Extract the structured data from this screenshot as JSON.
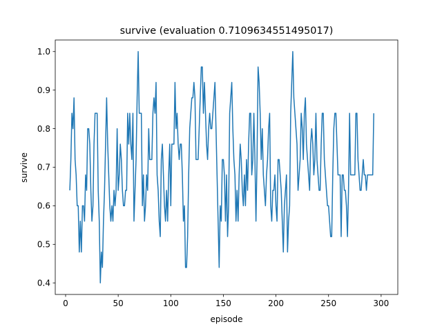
{
  "chart_data": {
    "type": "line",
    "title": "survive (evaluation 0.7109634551495017)",
    "xlabel": "episode",
    "ylabel": "survive",
    "xlim": [
      -9.85,
      315.85
    ],
    "ylim": [
      0.37,
      1.03
    ],
    "xticks": [
      0,
      50,
      100,
      150,
      200,
      250,
      300
    ],
    "yticks": [
      0.4,
      0.5,
      0.6,
      0.7,
      0.8,
      0.9,
      1.0
    ],
    "xtick_labels": [
      "0",
      "50",
      "100",
      "150",
      "200",
      "250",
      "300"
    ],
    "ytick_labels": [
      "0.4",
      "0.5",
      "0.6",
      "0.7",
      "0.8",
      "0.9",
      "1.0"
    ],
    "grid": false,
    "series": [
      {
        "color": "#1f77b4",
        "x_start": 4,
        "x_step": 1,
        "values": [
          0.64,
          0.72,
          0.84,
          0.8,
          0.88,
          0.72,
          0.68,
          0.6,
          0.6,
          0.48,
          0.56,
          0.48,
          0.6,
          0.6,
          0.56,
          0.68,
          0.64,
          0.8,
          0.8,
          0.76,
          0.64,
          0.56,
          0.6,
          0.76,
          0.84,
          0.84,
          0.84,
          0.64,
          0.56,
          0.4,
          0.48,
          0.44,
          0.56,
          0.64,
          0.76,
          0.88,
          0.76,
          0.68,
          0.6,
          0.56,
          0.6,
          0.56,
          0.64,
          0.6,
          0.64,
          0.8,
          0.64,
          0.68,
          0.76,
          0.72,
          0.64,
          0.6,
          0.6,
          0.64,
          0.64,
          0.84,
          0.76,
          0.84,
          0.76,
          0.72,
          0.84,
          0.56,
          0.64,
          0.72,
          0.88,
          1.0,
          0.84,
          0.84,
          0.84,
          0.6,
          0.68,
          0.56,
          0.6,
          0.68,
          0.64,
          0.8,
          0.72,
          0.72,
          0.72,
          0.84,
          0.88,
          0.84,
          0.92,
          0.68,
          0.64,
          0.56,
          0.52,
          0.72,
          0.76,
          0.68,
          0.6,
          0.56,
          0.64,
          0.56,
          0.68,
          0.76,
          0.6,
          0.76,
          0.76,
          0.76,
          0.92,
          0.8,
          0.84,
          0.76,
          0.72,
          0.76,
          0.76,
          0.68,
          0.56,
          0.6,
          0.44,
          0.44,
          0.52,
          0.68,
          0.8,
          0.84,
          0.88,
          0.88,
          0.92,
          0.88,
          0.72,
          0.72,
          0.72,
          0.8,
          0.88,
          0.96,
          0.96,
          0.84,
          0.92,
          0.84,
          0.76,
          0.72,
          0.8,
          0.84,
          0.8,
          0.8,
          0.84,
          0.88,
          0.92,
          0.8,
          0.68,
          0.56,
          0.44,
          0.6,
          0.56,
          0.72,
          0.72,
          0.68,
          0.56,
          0.68,
          0.52,
          0.6,
          0.84,
          0.88,
          0.92,
          0.8,
          0.72,
          0.68,
          0.56,
          0.64,
          0.56,
          0.68,
          0.76,
          0.72,
          0.64,
          0.6,
          0.68,
          0.6,
          0.72,
          0.64,
          0.76,
          0.84,
          0.84,
          0.68,
          0.72,
          0.84,
          0.72,
          0.56,
          0.72,
          0.96,
          0.92,
          0.84,
          0.72,
          0.8,
          0.68,
          0.64,
          0.6,
          0.68,
          0.72,
          0.8,
          0.84,
          0.6,
          0.56,
          0.64,
          0.64,
          0.68,
          0.6,
          0.56,
          0.72,
          0.72,
          0.68,
          0.64,
          0.56,
          0.48,
          0.6,
          0.64,
          0.68,
          0.48,
          0.56,
          0.6,
          0.84,
          0.92,
          1.0,
          0.88,
          0.84,
          0.8,
          0.76,
          0.64,
          0.68,
          0.72,
          0.84,
          0.8,
          0.72,
          0.84,
          0.88,
          0.76,
          0.72,
          0.68,
          0.64,
          0.76,
          0.8,
          0.76,
          0.68,
          0.72,
          0.84,
          0.72,
          0.68,
          0.64,
          0.64,
          0.76,
          0.84,
          0.84,
          0.72,
          0.68,
          0.64,
          0.6,
          0.6,
          0.56,
          0.52,
          0.52,
          0.68,
          0.8,
          0.84,
          0.84,
          0.76,
          0.68,
          0.68,
          0.68,
          0.52,
          0.68,
          0.68,
          0.64,
          0.64,
          0.6,
          0.52,
          0.64,
          0.84,
          0.68,
          0.68,
          0.68,
          0.68,
          0.68,
          0.84,
          0.84,
          0.72,
          0.68,
          0.64,
          0.64,
          0.68,
          0.72,
          0.68,
          0.68,
          0.64,
          0.68,
          0.68,
          0.68,
          0.68,
          0.68,
          0.68,
          0.84
        ]
      }
    ]
  }
}
